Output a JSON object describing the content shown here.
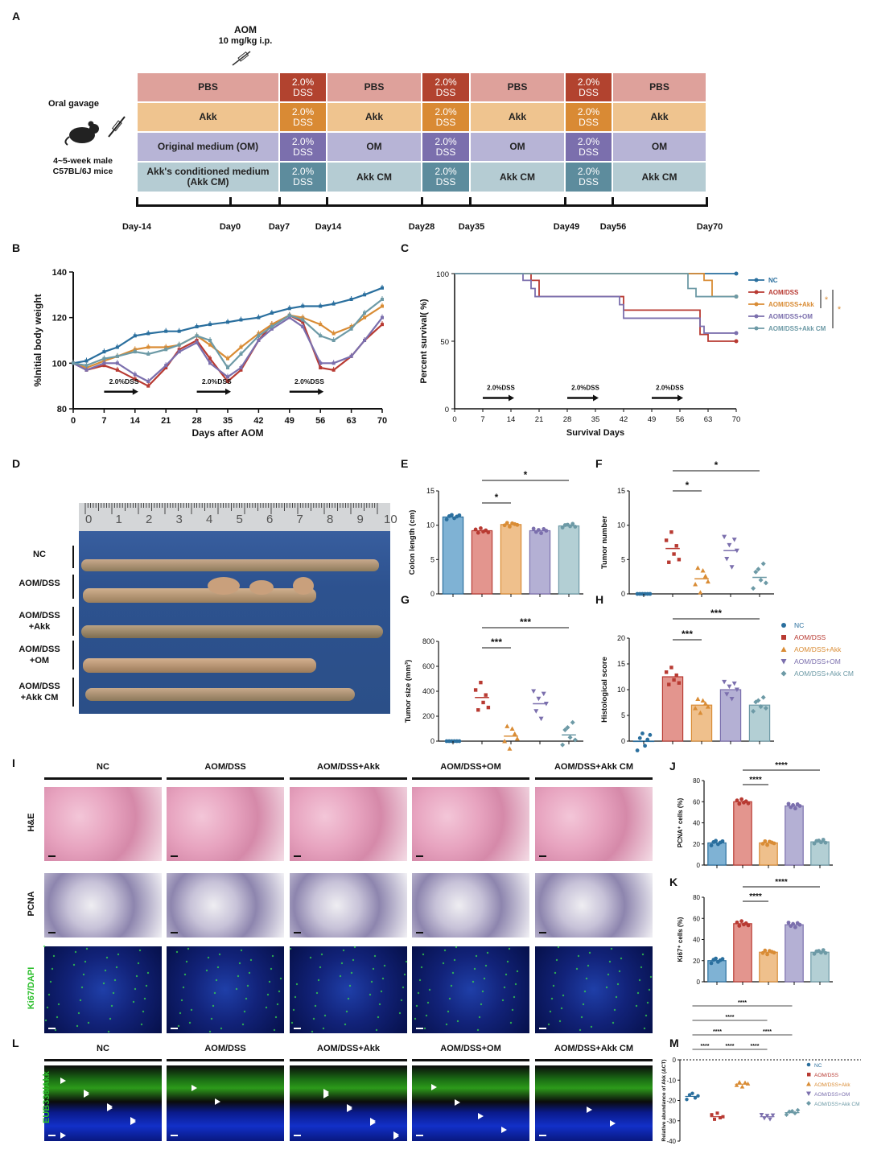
{
  "panels": {
    "A": "A",
    "B": "B",
    "C": "C",
    "D": "D",
    "E": "E",
    "F": "F",
    "G": "G",
    "H": "H",
    "I": "I",
    "J": "J",
    "K": "K",
    "L": "L",
    "M": "M"
  },
  "schedule": {
    "aom_label": "AOM",
    "aom_dose": "10 mg/kg i.p.",
    "oral_gavage": "Oral gavage",
    "mice": "4~5-week male C57BL/6J  mice",
    "rows": [
      {
        "cells": [
          "PBS",
          "2.0% DSS",
          "PBS",
          "2.0% DSS",
          "PBS",
          "2.0% DSS",
          "PBS"
        ]
      },
      {
        "cells": [
          "Akk",
          "2.0% DSS",
          "Akk",
          "2.0% DSS",
          "Akk",
          "2.0% DSS",
          "Akk"
        ]
      },
      {
        "cells": [
          "Original medium (OM)",
          "2.0% DSS",
          "OM",
          "2.0% DSS",
          "OM",
          "2.0% DSS",
          "OM"
        ]
      },
      {
        "cells": [
          "Akk's conditioned medium (Akk CM)",
          "2.0% DSS",
          "Akk CM",
          "2.0% DSS",
          "Akk CM",
          "2.0% DSS",
          "Akk CM"
        ]
      }
    ],
    "days": [
      "Day-14",
      "Day0",
      "Day7",
      "Day14",
      "Day28",
      "Day35",
      "Day49",
      "Day56",
      "Day70"
    ],
    "row_colors": [
      "#dea19b",
      "#efc48f",
      "#b7b4d6",
      "#b5ccd3"
    ],
    "dss_colors": [
      "#b2432f",
      "#d98a34",
      "#7b6fad",
      "#5d8c9d"
    ]
  },
  "groups": [
    "NC",
    "AOM/DSS",
    "AOM/DSS+Akk",
    "AOM/DSS+OM",
    "AOM/DSS+Akk CM"
  ],
  "group_colors": [
    "#2a6f9e",
    "#b83a32",
    "#d98c35",
    "#7b6fad",
    "#6d9aa6"
  ],
  "group_fills": [
    "#7fb2d4",
    "#e3958e",
    "#efc08c",
    "#b4b0d4",
    "#b3cfd4"
  ],
  "dss_label": "2.0%DSS",
  "tissue_labels": [
    "NC",
    "AOM/DSS",
    "AOM/DSS +Akk",
    "AOM/DSS +OM",
    "AOM/DSS +Akk CM"
  ],
  "ruler_numbers": [
    "0",
    "1",
    "2",
    "3",
    "4",
    "5",
    "6",
    "7",
    "8",
    "9",
    "10"
  ],
  "histo": {
    "row_labels": [
      "H&E",
      "PCNA",
      "Ki67/DAPI"
    ],
    "fish_label": "EUB338/Akk"
  },
  "chart_data": [
    {
      "panel": "B",
      "type": "line",
      "xlabel": "Days after AOM",
      "ylabel": "%Initial body weight",
      "xlim": [
        0,
        70
      ],
      "ylim": [
        80,
        140
      ],
      "xticks": [
        "0",
        "7",
        "14",
        "21",
        "28",
        "35",
        "42",
        "49",
        "56",
        "63",
        "70"
      ],
      "yticks": [
        "80",
        "100",
        "120",
        "140"
      ],
      "x": [
        0,
        3,
        7,
        10,
        14,
        17,
        21,
        24,
        28,
        31,
        35,
        38,
        42,
        45,
        49,
        52,
        56,
        59,
        63,
        66,
        70
      ],
      "series": [
        {
          "values": [
            100,
            101,
            105,
            107,
            112,
            113,
            114,
            114,
            116,
            117,
            118,
            119,
            120,
            122,
            124,
            125,
            125,
            126,
            128,
            130,
            133
          ]
        },
        {
          "values": [
            100,
            97,
            99,
            97,
            93,
            90,
            98,
            106,
            110,
            102,
            92,
            97,
            110,
            117,
            121,
            118,
            98,
            97,
            103,
            110,
            117
          ]
        },
        {
          "values": [
            100,
            98,
            101,
            103,
            106,
            107,
            107,
            108,
            112,
            108,
            102,
            107,
            113,
            117,
            121,
            120,
            117,
            113,
            116,
            120,
            125
          ]
        },
        {
          "values": [
            100,
            97,
            100,
            100,
            95,
            92,
            99,
            105,
            109,
            100,
            94,
            98,
            110,
            115,
            120,
            116,
            100,
            100,
            103,
            110,
            120
          ]
        },
        {
          "values": [
            100,
            99,
            102,
            103,
            105,
            104,
            106,
            108,
            112,
            110,
            98,
            104,
            112,
            116,
            121,
            119,
            112,
            110,
            115,
            122,
            128
          ]
        }
      ],
      "annotations": [
        "2.0%DSS",
        "2.0%DSS",
        "2.0%DSS"
      ]
    },
    {
      "panel": "C",
      "type": "line",
      "xlabel": "Survival Days",
      "ylabel": "Percent survival( %)",
      "xlim": [
        0,
        70
      ],
      "ylim": [
        0,
        100
      ],
      "xticks": [
        "0",
        "7",
        "14",
        "21",
        "28",
        "35",
        "42",
        "49",
        "56",
        "63",
        "70"
      ],
      "yticks": [
        "0",
        "50",
        "100"
      ],
      "series": [
        {
          "x": [
            0,
            70
          ],
          "values": [
            100,
            100
          ]
        },
        {
          "x": [
            0,
            17,
            19,
            21,
            40,
            42,
            56,
            61,
            63,
            70
          ],
          "values": [
            100,
            100,
            95,
            83,
            83,
            73,
            73,
            55,
            50,
            50
          ]
        },
        {
          "x": [
            0,
            62,
            64,
            70
          ],
          "values": [
            100,
            95,
            83,
            83
          ]
        },
        {
          "x": [
            0,
            17,
            19,
            20,
            41,
            42,
            61,
            62,
            70
          ],
          "values": [
            100,
            95,
            89,
            83,
            77,
            67,
            61,
            56,
            56
          ]
        },
        {
          "x": [
            0,
            58,
            60,
            70
          ],
          "values": [
            100,
            89,
            83,
            83
          ]
        }
      ],
      "significance": [
        "*",
        "*"
      ]
    },
    {
      "panel": "E",
      "type": "bar",
      "ylabel": "Colon length (cm)",
      "yticks": [
        "0",
        "5",
        "10",
        "15"
      ],
      "ylim": [
        0,
        15
      ],
      "values": [
        11.2,
        9.2,
        10.1,
        9.2,
        9.9
      ],
      "significance": [
        "*",
        "*"
      ]
    },
    {
      "panel": "F",
      "type": "scatter",
      "ylabel": "Tumor number",
      "yticks": [
        "0",
        "5",
        "10",
        "15"
      ],
      "ylim": [
        0,
        15
      ],
      "values": [
        0,
        6.6,
        2.2,
        6.3,
        2.4
      ],
      "significance": [
        "*",
        "*"
      ]
    },
    {
      "panel": "G",
      "type": "scatter",
      "ylabel": "Tumor size (mm³)",
      "yticks": [
        "0",
        "200",
        "400",
        "600",
        "800"
      ],
      "ylim": [
        0,
        800
      ],
      "values": [
        0,
        350,
        40,
        300,
        50
      ],
      "significance": [
        "***",
        "***"
      ]
    },
    {
      "panel": "H",
      "type": "bar",
      "ylabel": "Histological score",
      "yticks": [
        "0",
        "5",
        "10",
        "15",
        "20"
      ],
      "ylim": [
        0,
        20
      ],
      "values": [
        0,
        12.5,
        7,
        10,
        7
      ],
      "significance": [
        "***",
        "***"
      ]
    },
    {
      "panel": "J",
      "type": "bar",
      "ylabel": "PCNA⁺ cells (%)",
      "yticks": [
        "0",
        "20",
        "40",
        "60",
        "80"
      ],
      "ylim": [
        0,
        80
      ],
      "values": [
        21,
        60,
        21,
        56,
        22
      ],
      "significance": [
        "****",
        "****"
      ]
    },
    {
      "panel": "K",
      "type": "bar",
      "ylabel": "Ki67⁺ cells (%)",
      "yticks": [
        "0",
        "20",
        "40",
        "60",
        "80"
      ],
      "ylim": [
        0,
        80
      ],
      "values": [
        20,
        55,
        28,
        54,
        28
      ],
      "significance": [
        "****",
        "****"
      ]
    },
    {
      "panel": "M",
      "type": "scatter",
      "ylabel": "Relative abundance of Akk (ΔCT)",
      "yticks": [
        "0",
        "-10",
        "-20",
        "-30",
        "-40"
      ],
      "ylim": [
        -40,
        0
      ],
      "values": [
        -18,
        -28,
        -12,
        -28,
        -26
      ],
      "significance": [
        "****",
        "****",
        "****",
        "****",
        "****",
        "****",
        "****",
        "****"
      ]
    }
  ]
}
